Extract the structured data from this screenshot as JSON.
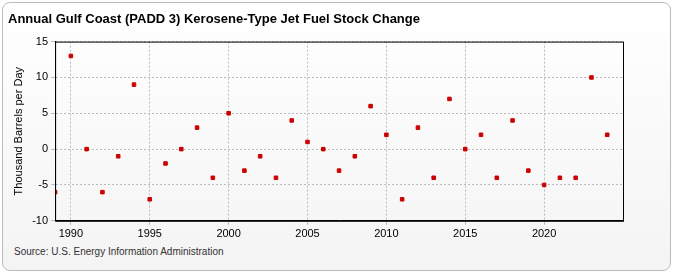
{
  "chart_data": {
    "type": "scatter",
    "title": "Annual Gulf Coast (PADD 3) Kerosene-Type Jet Fuel Stock Change",
    "y_label": "Thousand Barrels per Day",
    "annotation": "Source: U.S. Energy Information Administration",
    "x": [
      1989,
      1990,
      1991,
      1992,
      1993,
      1994,
      1995,
      1996,
      1997,
      1998,
      1999,
      2000,
      2001,
      2002,
      2003,
      2004,
      2005,
      2006,
      2007,
      2008,
      2009,
      2010,
      2011,
      2012,
      2013,
      2014,
      2015,
      2016,
      2017,
      2018,
      2019,
      2020,
      2021,
      2022,
      2023,
      2024
    ],
    "values": [
      -6,
      13,
      0,
      -6,
      -1,
      9,
      -7,
      -2,
      0,
      3,
      -4,
      5,
      -3,
      -1,
      -4,
      4,
      1,
      0,
      -3,
      -1,
      6,
      2,
      -7,
      3,
      -4,
      7,
      0,
      2,
      -4,
      4,
      -3,
      -5,
      -4,
      -4,
      10,
      2
    ],
    "color": "#cc0000",
    "marker": "square",
    "xlim": [
      1989,
      2025
    ],
    "xticks": [
      1990,
      1995,
      2000,
      2005,
      2010,
      2015,
      2020
    ],
    "ylim": [
      -10,
      15
    ],
    "yticks": [
      -10,
      -5,
      0,
      5,
      10,
      15
    ],
    "grid": true
  }
}
